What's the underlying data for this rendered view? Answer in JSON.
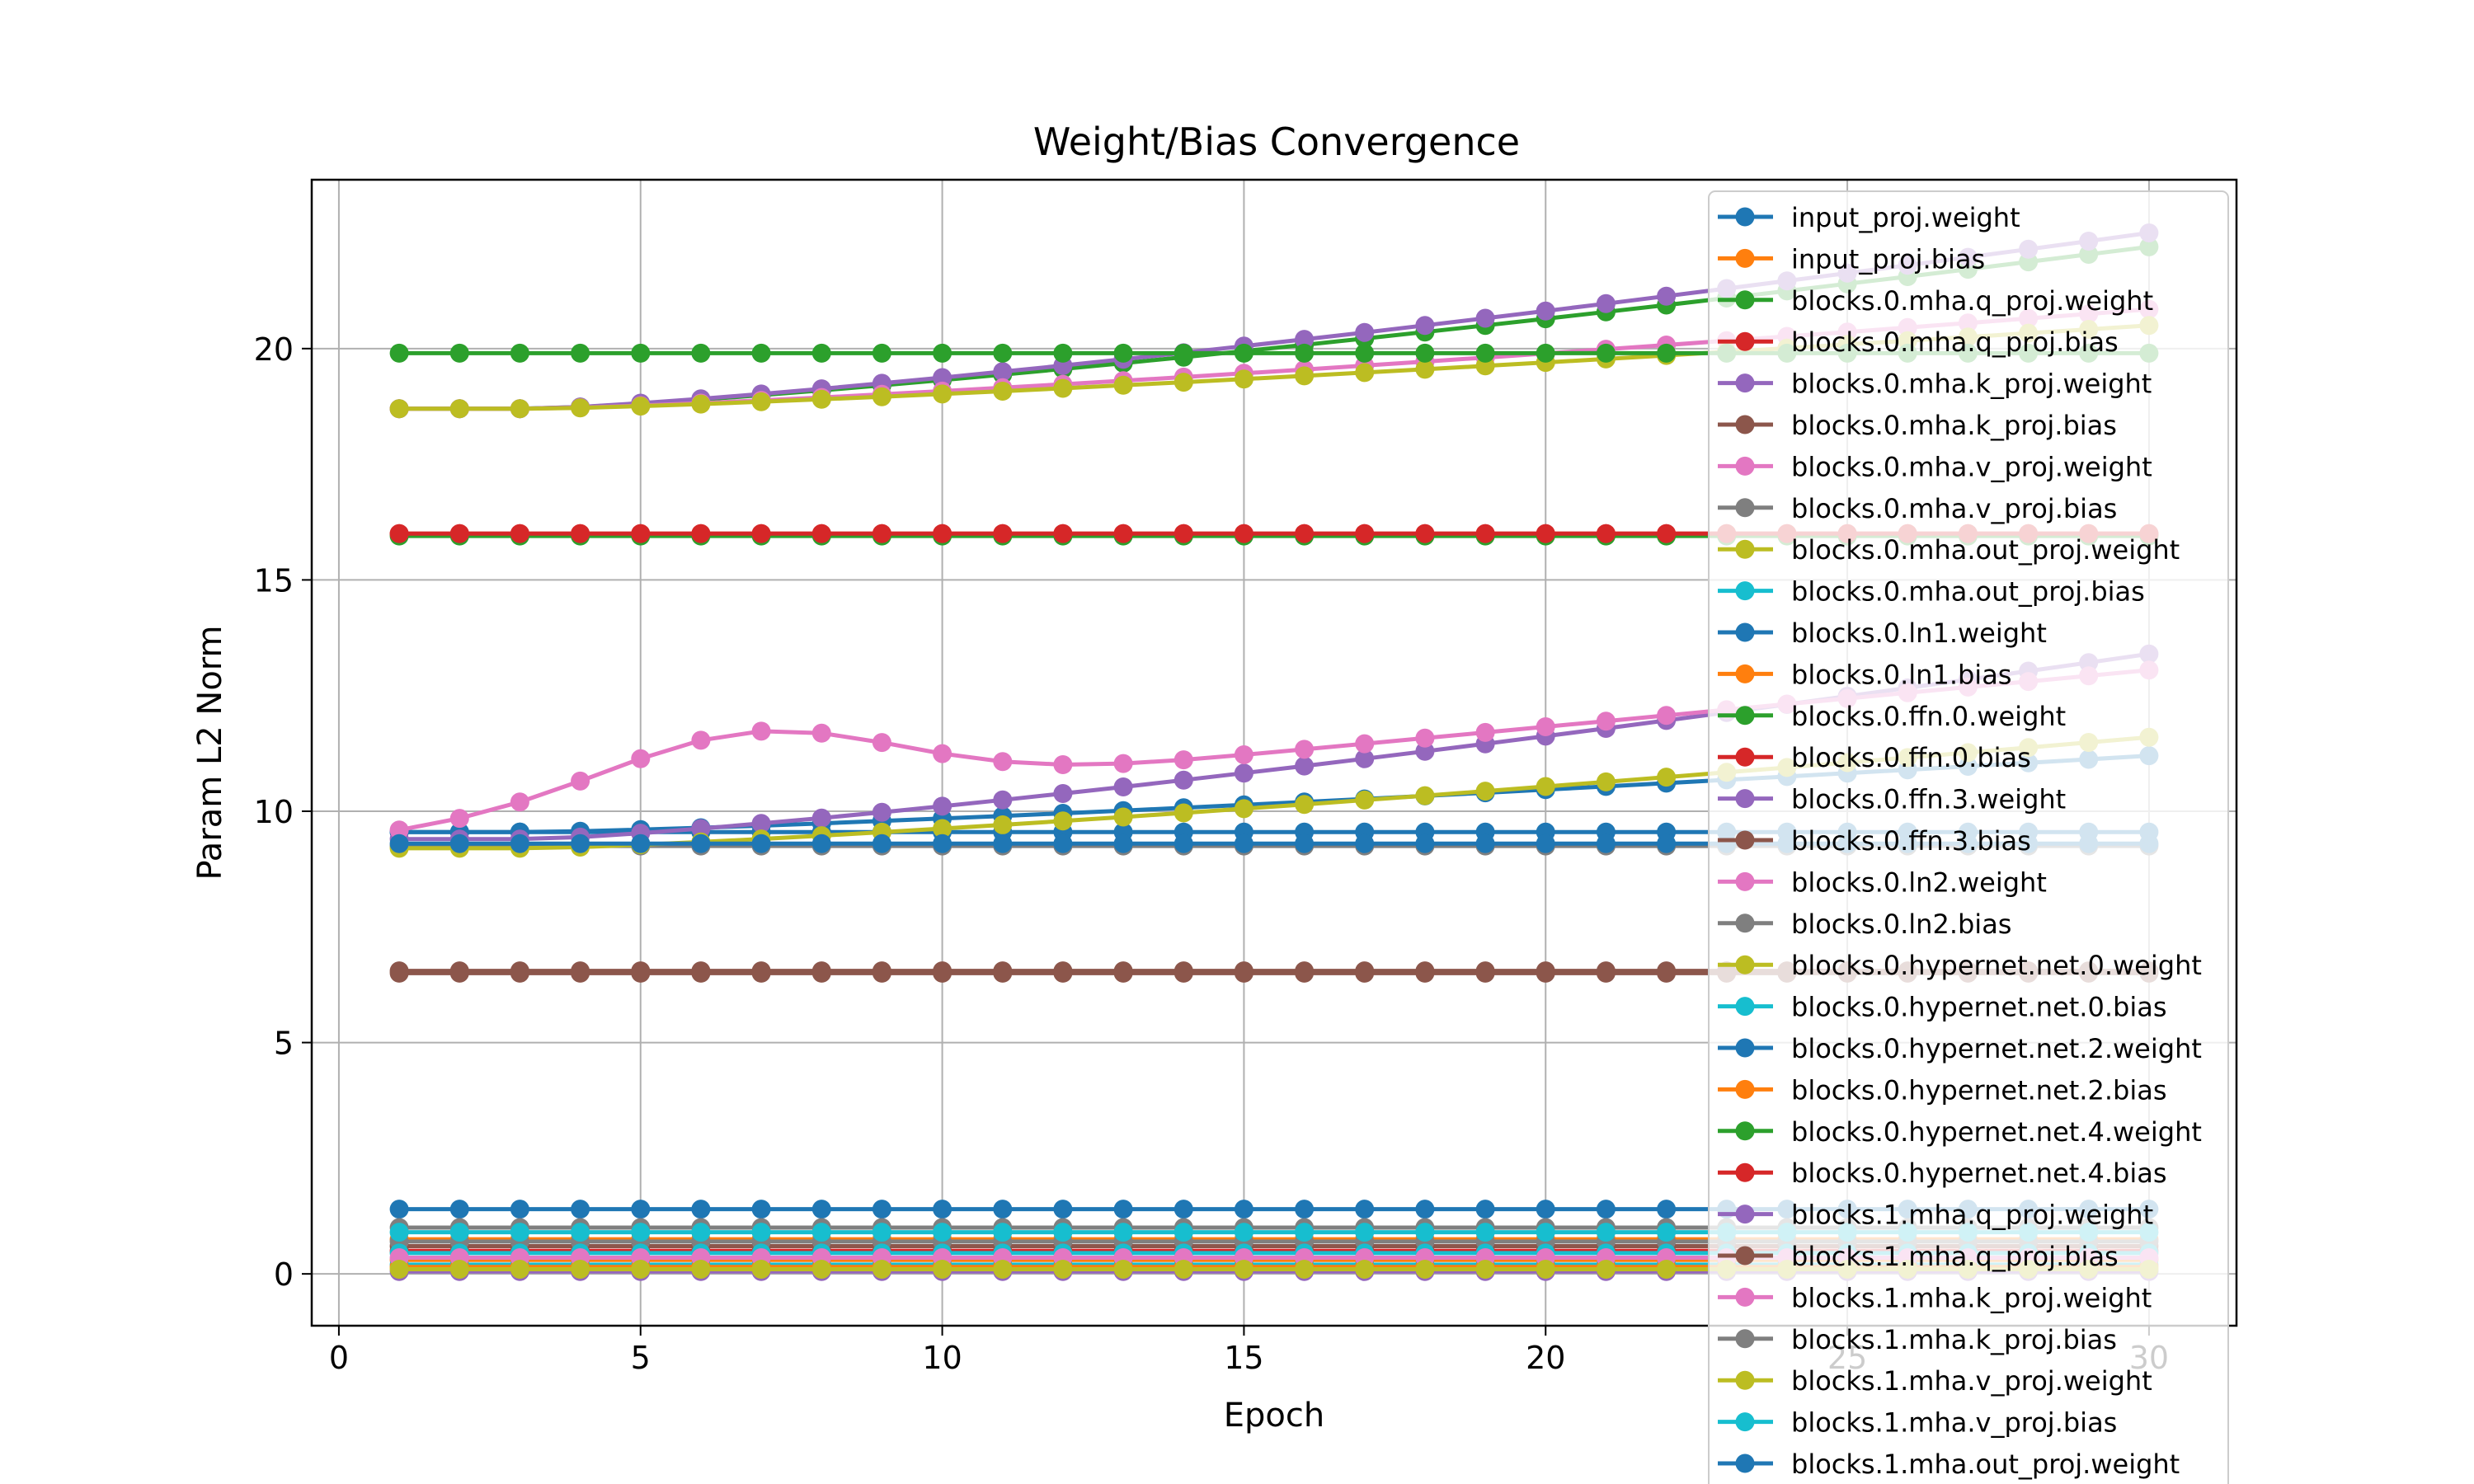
{
  "chart_data": {
    "type": "line",
    "title": "Weight/Bias Convergence",
    "xlabel": "Epoch",
    "ylabel": "Param L2 Norm",
    "xlim": [
      -0.45,
      31.45
    ],
    "ylim": [
      -1.12,
      23.65
    ],
    "xticks": [
      "0",
      "5",
      "10",
      "15",
      "20",
      "25",
      "30"
    ],
    "yticks": [
      "0",
      "5",
      "10",
      "15",
      "20"
    ],
    "grid": true,
    "legend_position": "upper-right",
    "x": [
      1,
      2,
      3,
      4,
      5,
      6,
      7,
      8,
      9,
      10,
      11,
      12,
      13,
      14,
      15,
      16,
      17,
      18,
      19,
      20,
      21,
      22,
      23,
      24,
      25,
      26,
      27,
      28,
      29,
      30
    ],
    "series": [
      {
        "name": "input_proj.weight",
        "color": "#1f77b4",
        "start": 9.55,
        "end": 9.55,
        "shape": "flat"
      },
      {
        "name": "input_proj.bias",
        "color": "#ff7f0e",
        "start": 0.75,
        "end": 0.75,
        "shape": "flat"
      },
      {
        "name": "blocks.0.mha.q_proj.weight",
        "color": "#2ca02c",
        "start": 18.7,
        "end": 22.2,
        "shape": "late"
      },
      {
        "name": "blocks.0.mha.q_proj.bias",
        "color": "#d62728",
        "start": 0.5,
        "end": 0.5,
        "shape": "flat"
      },
      {
        "name": "blocks.0.mha.k_proj.weight",
        "color": "#9467bd",
        "start": 18.7,
        "end": 22.5,
        "shape": "late"
      },
      {
        "name": "blocks.0.mha.k_proj.bias",
        "color": "#8c564b",
        "start": 0.6,
        "end": 0.6,
        "shape": "flat"
      },
      {
        "name": "blocks.0.mha.v_proj.weight",
        "color": "#e377c2",
        "start": 18.7,
        "end": 20.85,
        "shape": "late"
      },
      {
        "name": "blocks.0.mha.v_proj.bias",
        "color": "#7f7f7f",
        "start": 0.7,
        "end": 0.7,
        "shape": "flat"
      },
      {
        "name": "blocks.0.mha.out_proj.weight",
        "color": "#bcbd22",
        "start": 18.7,
        "end": 20.5,
        "shape": "late"
      },
      {
        "name": "blocks.0.mha.out_proj.bias",
        "color": "#17becf",
        "start": 0.45,
        "end": 0.45,
        "shape": "flat"
      },
      {
        "name": "blocks.0.ln1.weight",
        "color": "#1f77b4",
        "start": 9.55,
        "end": 11.2,
        "shape": "late"
      },
      {
        "name": "blocks.0.ln1.bias",
        "color": "#ff7f0e",
        "start": 0.3,
        "end": 0.3,
        "shape": "flat"
      },
      {
        "name": "blocks.0.ffn.0.weight",
        "color": "#2ca02c",
        "start": 19.9,
        "end": 19.9,
        "shape": "flat"
      },
      {
        "name": "blocks.0.ffn.0.bias",
        "color": "#d62728",
        "start": 16.0,
        "end": 16.0,
        "shape": "flat"
      },
      {
        "name": "blocks.0.ffn.3.weight",
        "color": "#9467bd",
        "start": 9.4,
        "end": 13.4,
        "shape": "late"
      },
      {
        "name": "blocks.0.ffn.3.bias",
        "color": "#8c564b",
        "start": 6.5,
        "end": 6.5,
        "shape": "flat"
      },
      {
        "name": "blocks.0.ln2.weight",
        "color": "#e377c2",
        "start": 9.5,
        "end": 13.05,
        "shape": "hump"
      },
      {
        "name": "blocks.0.ln2.bias",
        "color": "#7f7f7f",
        "start": 9.25,
        "end": 9.25,
        "shape": "flat"
      },
      {
        "name": "blocks.0.hypernet.net.0.weight",
        "color": "#bcbd22",
        "start": 9.2,
        "end": 11.6,
        "shape": "late"
      },
      {
        "name": "blocks.0.hypernet.net.0.bias",
        "color": "#17becf",
        "start": 0.2,
        "end": 0.2,
        "shape": "flat"
      },
      {
        "name": "blocks.0.hypernet.net.2.weight",
        "color": "#1f77b4",
        "start": 1.4,
        "end": 1.4,
        "shape": "flat"
      },
      {
        "name": "blocks.0.hypernet.net.2.bias",
        "color": "#ff7f0e",
        "start": 0.15,
        "end": 0.15,
        "shape": "flat"
      },
      {
        "name": "blocks.0.hypernet.net.4.weight",
        "color": "#2ca02c",
        "start": 15.95,
        "end": 15.95,
        "shape": "flat"
      },
      {
        "name": "blocks.0.hypernet.net.4.bias",
        "color": "#d62728",
        "start": 16.0,
        "end": 16.0,
        "shape": "flat"
      },
      {
        "name": "blocks.1.mha.q_proj.weight",
        "color": "#9467bd",
        "start": 0.05,
        "end": 0.05,
        "shape": "flat"
      },
      {
        "name": "blocks.1.mha.q_proj.bias",
        "color": "#8c564b",
        "start": 6.55,
        "end": 6.55,
        "shape": "flat"
      },
      {
        "name": "blocks.1.mha.k_proj.weight",
        "color": "#e377c2",
        "start": 0.35,
        "end": 0.35,
        "shape": "flat"
      },
      {
        "name": "blocks.1.mha.k_proj.bias",
        "color": "#7f7f7f",
        "start": 1.0,
        "end": 1.0,
        "shape": "flat"
      },
      {
        "name": "blocks.1.mha.v_proj.weight",
        "color": "#bcbd22",
        "start": 0.1,
        "end": 0.1,
        "shape": "flat"
      },
      {
        "name": "blocks.1.mha.v_proj.bias",
        "color": "#17becf",
        "start": 0.9,
        "end": 0.9,
        "shape": "flat"
      },
      {
        "name": "blocks.1.mha.out_proj.weight",
        "color": "#1f77b4",
        "start": 9.3,
        "end": 9.3,
        "shape": "flat"
      }
    ]
  }
}
